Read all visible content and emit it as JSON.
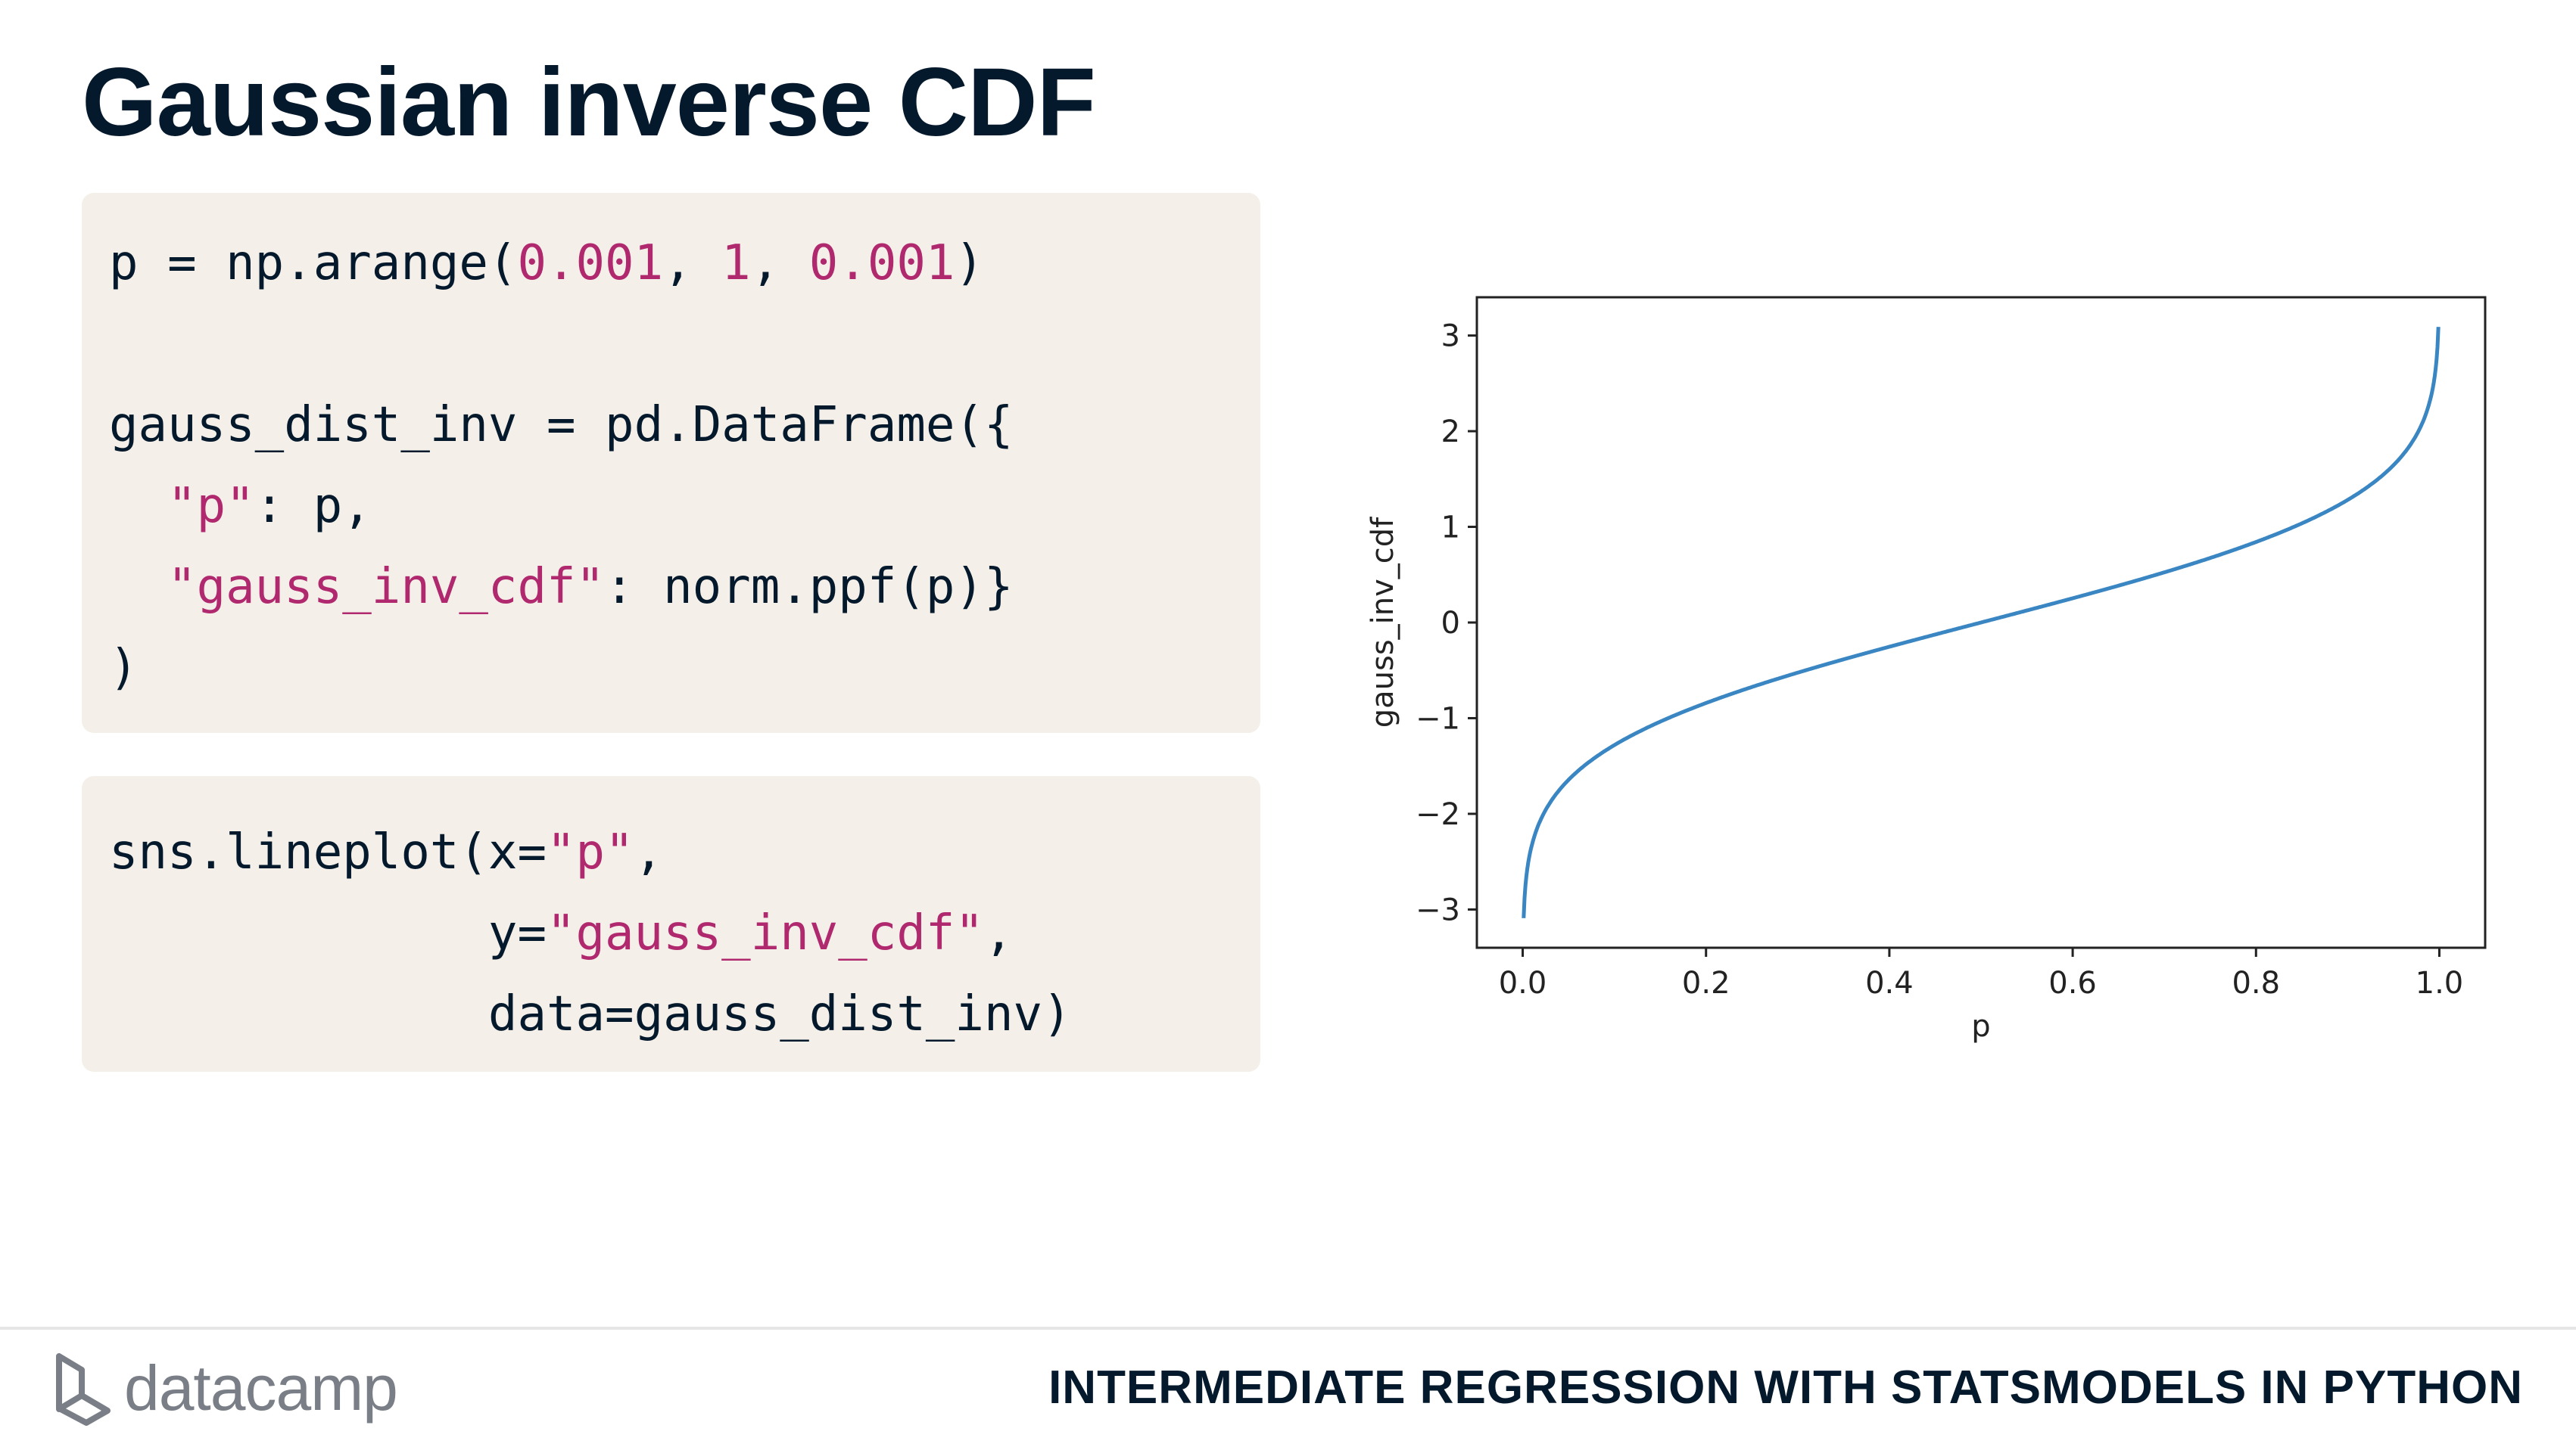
{
  "slide": {
    "title": "Gaussian inverse CDF",
    "course_title": "INTERMEDIATE REGRESSION WITH STATSMODELS IN PYTHON",
    "logo_text": "datacamp"
  },
  "code_block_1": [
    [
      {
        "t": "p = np.arange(",
        "c": "plain"
      },
      {
        "t": "0.001",
        "c": "num"
      },
      {
        "t": ", ",
        "c": "plain"
      },
      {
        "t": "1",
        "c": "num"
      },
      {
        "t": ", ",
        "c": "plain"
      },
      {
        "t": "0.001",
        "c": "num"
      },
      {
        "t": ")",
        "c": "plain"
      }
    ],
    [],
    [
      {
        "t": "gauss_dist_inv = pd.DataFrame({",
        "c": "plain"
      }
    ],
    [
      {
        "t": "  ",
        "c": "plain"
      },
      {
        "t": "\"p\"",
        "c": "str"
      },
      {
        "t": ": p,",
        "c": "plain"
      }
    ],
    [
      {
        "t": "  ",
        "c": "plain"
      },
      {
        "t": "\"gauss_inv_cdf\"",
        "c": "str"
      },
      {
        "t": ": norm.ppf(p)}",
        "c": "plain"
      }
    ],
    [
      {
        "t": ")",
        "c": "plain"
      }
    ]
  ],
  "code_block_2": [
    [
      {
        "t": "sns.lineplot(x=",
        "c": "plain"
      },
      {
        "t": "\"p\"",
        "c": "str"
      },
      {
        "t": ",",
        "c": "plain"
      }
    ],
    [
      {
        "t": "             y=",
        "c": "plain"
      },
      {
        "t": "\"gauss_inv_cdf\"",
        "c": "str"
      },
      {
        "t": ",",
        "c": "plain"
      }
    ],
    [
      {
        "t": "             data=gauss_dist_inv)",
        "c": "plain"
      }
    ]
  ],
  "colors": {
    "code_background": "#f4f0e9",
    "string_token": "#b0296f",
    "line_series": "#3a86c2",
    "title_text": "#05192d"
  },
  "chart_data": {
    "type": "line",
    "function": "norm.ppf(p)",
    "x": [
      0.001,
      0.005,
      0.01,
      0.02,
      0.05,
      0.1,
      0.2,
      0.3,
      0.4,
      0.5,
      0.6,
      0.7,
      0.8,
      0.9,
      0.95,
      0.98,
      0.99,
      0.995,
      0.999
    ],
    "y": [
      -3.09,
      -2.576,
      -2.326,
      -2.054,
      -1.645,
      -1.282,
      -0.842,
      -0.524,
      -0.253,
      0.0,
      0.253,
      0.524,
      0.842,
      1.282,
      1.645,
      2.054,
      2.326,
      2.576,
      3.09
    ],
    "xlabel": "p",
    "ylabel": "gauss_inv_cdf",
    "xlim": [
      -0.05,
      1.05
    ],
    "ylim": [
      -3.4,
      3.4
    ],
    "xticks": [
      0.0,
      0.2,
      0.4,
      0.6,
      0.8,
      1.0
    ],
    "xtick_labels": [
      "0.0",
      "0.2",
      "0.4",
      "0.6",
      "0.8",
      "1.0"
    ],
    "yticks": [
      -3,
      -2,
      -1,
      0,
      1,
      2,
      3
    ],
    "ytick_labels": [
      "−3",
      "−2",
      "−1",
      "0",
      "1",
      "2",
      "3"
    ],
    "grid": false,
    "legend": "none"
  }
}
